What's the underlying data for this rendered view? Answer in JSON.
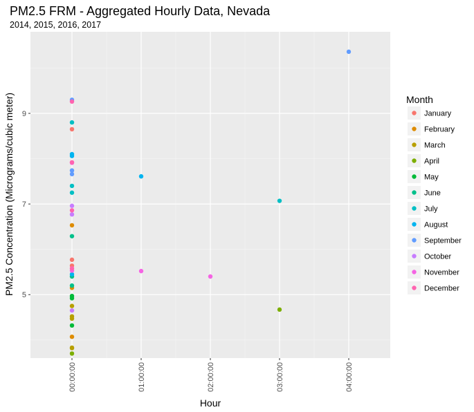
{
  "chart_data": {
    "type": "scatter",
    "title": "PM2.5 FRM - Aggregated Hourly Data, Nevada",
    "subtitle": "2014, 2015, 2016, 2017",
    "xlabel": "Hour",
    "ylabel": "PM2.5 Concentration (Micrograms/cubic meter)",
    "x_categories": [
      "00:00:00",
      "01:00:00",
      "02:00:00",
      "03:00:00",
      "04:00:00"
    ],
    "ylim": [
      3.6,
      10.8
    ],
    "y_ticks": [
      5,
      7,
      9
    ],
    "grid": true,
    "legend_title": "Month",
    "legend_position": "right",
    "series": [
      {
        "name": "January",
        "color": "#F8766D",
        "points": [
          {
            "x": "00:00:00",
            "y": 8.65
          },
          {
            "x": "00:00:00",
            "y": 5.77
          },
          {
            "x": "00:00:00",
            "y": 5.64
          }
        ]
      },
      {
        "name": "February",
        "color": "#DE8C00",
        "points": [
          {
            "x": "00:00:00",
            "y": 6.53
          },
          {
            "x": "00:00:00",
            "y": 5.15
          },
          {
            "x": "00:00:00",
            "y": 4.07
          }
        ]
      },
      {
        "name": "March",
        "color": "#B79F00",
        "points": [
          {
            "x": "00:00:00",
            "y": 4.75
          },
          {
            "x": "00:00:00",
            "y": 4.52
          },
          {
            "x": "00:00:00",
            "y": 4.47
          },
          {
            "x": "00:00:00",
            "y": 3.83
          },
          {
            "x": "00:00:00",
            "y": 3.82
          }
        ]
      },
      {
        "name": "April",
        "color": "#7CAE00",
        "points": [
          {
            "x": "00:00:00",
            "y": 3.7
          },
          {
            "x": "03:00:00",
            "y": 4.67
          }
        ]
      },
      {
        "name": "May",
        "color": "#00BA38",
        "points": [
          {
            "x": "00:00:00",
            "y": 4.97
          },
          {
            "x": "00:00:00",
            "y": 4.92
          },
          {
            "x": "00:00:00",
            "y": 4.32
          }
        ]
      },
      {
        "name": "June",
        "color": "#00C08B",
        "points": [
          {
            "x": "00:00:00",
            "y": 6.29
          },
          {
            "x": "00:00:00",
            "y": 5.4
          },
          {
            "x": "00:00:00",
            "y": 5.2
          }
        ]
      },
      {
        "name": "July",
        "color": "#00BFC4",
        "points": [
          {
            "x": "00:00:00",
            "y": 8.8
          },
          {
            "x": "00:00:00",
            "y": 7.4
          },
          {
            "x": "00:00:00",
            "y": 7.25
          },
          {
            "x": "03:00:00",
            "y": 7.07
          }
        ]
      },
      {
        "name": "August",
        "color": "#00B4F0",
        "points": [
          {
            "x": "00:00:00",
            "y": 8.1
          },
          {
            "x": "00:00:00",
            "y": 8.06
          },
          {
            "x": "00:00:00",
            "y": 5.45
          },
          {
            "x": "01:00:00",
            "y": 7.61
          }
        ]
      },
      {
        "name": "September",
        "color": "#619CFF",
        "points": [
          {
            "x": "00:00:00",
            "y": 9.3
          },
          {
            "x": "00:00:00",
            "y": 7.74
          },
          {
            "x": "00:00:00",
            "y": 7.66
          },
          {
            "x": "04:00:00",
            "y": 10.36
          }
        ]
      },
      {
        "name": "October",
        "color": "#C77CFF",
        "points": [
          {
            "x": "00:00:00",
            "y": 6.96
          },
          {
            "x": "00:00:00",
            "y": 6.77
          },
          {
            "x": "00:00:00",
            "y": 4.65
          }
        ]
      },
      {
        "name": "November",
        "color": "#F564E3",
        "points": [
          {
            "x": "00:00:00",
            "y": 7.91
          },
          {
            "x": "00:00:00",
            "y": 5.53
          },
          {
            "x": "01:00:00",
            "y": 5.52
          },
          {
            "x": "02:00:00",
            "y": 5.4
          }
        ]
      },
      {
        "name": "December",
        "color": "#FF64B0",
        "points": [
          {
            "x": "00:00:00",
            "y": 9.26
          },
          {
            "x": "00:00:00",
            "y": 7.92
          },
          {
            "x": "00:00:00",
            "y": 6.86
          },
          {
            "x": "00:00:00",
            "y": 5.58
          }
        ]
      }
    ]
  }
}
